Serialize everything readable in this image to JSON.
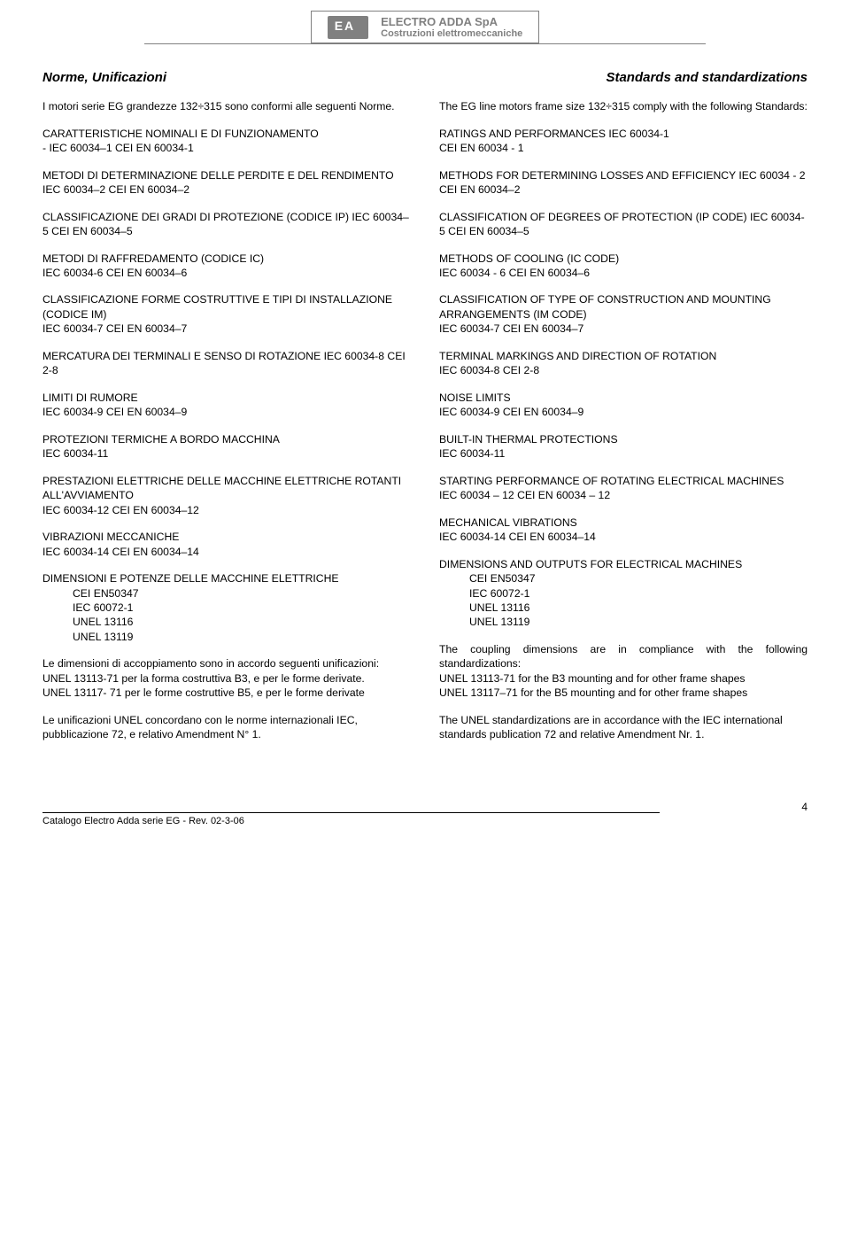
{
  "header": {
    "company": "ELECTRO ADDA SpA",
    "tagline": "Costruzioni elettromeccaniche"
  },
  "left": {
    "title": "Norme, Unificazioni",
    "intro": "I motori serie EG grandezze 132÷315 sono conformi alle seguenti Norme.",
    "s1a": "CARATTERISTICHE NOMINALI E DI FUNZIONAMENTO",
    "s1b": "- IEC 60034–1   CEI EN 60034-1",
    "s2a": "METODI DI DETERMINAZIONE DELLE PERDITE E DEL RENDIMENTO  IEC 60034–2    CEI EN 60034–2",
    "s3a": "CLASSIFICAZIONE DEI GRADI DI PROTEZIONE (CODICE IP)  IEC 60034–5    CEI EN 60034–5",
    "s4a": "METODI DI RAFFREDAMENTO (CODICE IC)",
    "s4b": "IEC 60034-6  CEI EN 60034–6",
    "s5a": "CLASSIFICAZIONE FORME COSTRUTTIVE E TIPI DI INSTALLAZIONE (CODICE IM)",
    "s5b": "IEC 60034-7    CEI EN 60034–7",
    "s6a": "MERCATURA DEI TERMINALI E SENSO DI ROTAZIONE  IEC 60034-8    CEI 2-8",
    "s7a": "LIMITI DI RUMORE",
    "s7b": "IEC 60034-9    CEI EN 60034–9",
    "s8a": "PROTEZIONI TERMICHE A BORDO MACCHINA",
    "s8b": "IEC 60034-11",
    "s9a": "PRESTAZIONI ELETTRICHE DELLE  MACCHINE ELETTRICHE ROTANTI ALL'AVVIAMENTO",
    "s9b": "IEC 60034-12    CEI EN 60034–12",
    "s10a": "VIBRAZIONI MECCANICHE",
    "s10b": "IEC 60034-14    CEI EN 60034–14",
    "s11a": "DIMENSIONI E POTENZE DELLE MACCHINE ELETTRICHE",
    "s11b": "CEI EN50347",
    "s11c": "IEC 60072-1",
    "s11d": "UNEL 13116",
    "s11e": "UNEL 13119",
    "s12a": "Le dimensioni di accoppiamento sono in accordo seguenti unificazioni:",
    "s12b": "UNEL 13113-71 per la forma costruttiva B3, e per le forme derivate.",
    "s12c": "UNEL 13117- 71 per le forme costruttive B5, e per le forme derivate",
    "s13": "Le unificazioni UNEL concordano con le norme internazionali IEC, pubblicazione 72, e relativo Amendment N° 1."
  },
  "right": {
    "title": "Standards and standardizations",
    "intro": "The EG line motors frame size 132÷315 comply with the following Standards:",
    "s1a": "RATINGS AND PERFORMANCES  IEC 60034-1",
    "s1b": "CEI EN 60034 - 1",
    "s2a": "METHODS FOR DETERMINING LOSSES AND EFFICIENCY IEC 60034 - 2    CEI EN 60034–2",
    "s3a": "CLASSIFICATION OF DEGREES OF PROTECTION (IP CODE)   IEC 60034-5    CEI EN 60034–5",
    "s4a": "METHODS OF COOLING (IC CODE)",
    "s4b": "IEC 60034 - 6    CEI EN 60034–6",
    "s5a": "CLASSIFICATION OF TYPE OF CONSTRUCTION AND MOUNTING ARRANGEMENTS (IM CODE)",
    "s5b": "IEC 60034-7    CEI EN 60034–7",
    "s6a": "TERMINAL MARKINGS AND DIRECTION OF ROTATION",
    "s6b": "IEC 60034-8    CEI 2-8",
    "s7a": "NOISE LIMITS",
    "s7b": "IEC 60034-9    CEI EN 60034–9",
    "s8a": "BUILT-IN THERMAL PROTECTIONS",
    "s8b": "IEC 60034-11",
    "s9a": "STARTING PERFORMANCE OF ROTATING ELECTRICAL MACHINES",
    "s9b": "IEC 60034 – 12    CEI EN 60034 – 12",
    "s10a": "MECHANICAL VIBRATIONS",
    "s10b": "IEC 60034-14    CEI EN 60034–14",
    "s11a": "DIMENSIONS AND OUTPUTS FOR ELECTRICAL MACHINES",
    "s11b": "CEI EN50347",
    "s11c": "IEC 60072-1",
    "s11d": "UNEL 13116",
    "s11e": "UNEL 13119",
    "s12a": "The coupling dimensions are in compliance with the following standardizations:",
    "s12b": "UNEL 13113-71 for the B3 mounting and for other frame shapes",
    "s12c": "UNEL 13117–71 for the B5 mounting  and for other frame shapes",
    "s13": "The UNEL standardizations are in accordance with the IEC international standards publication 72 and relative Amendment Nr. 1."
  },
  "footer": {
    "text": "Catalogo Electro Adda serie EG - Rev. 02-3-06",
    "page": "4"
  }
}
